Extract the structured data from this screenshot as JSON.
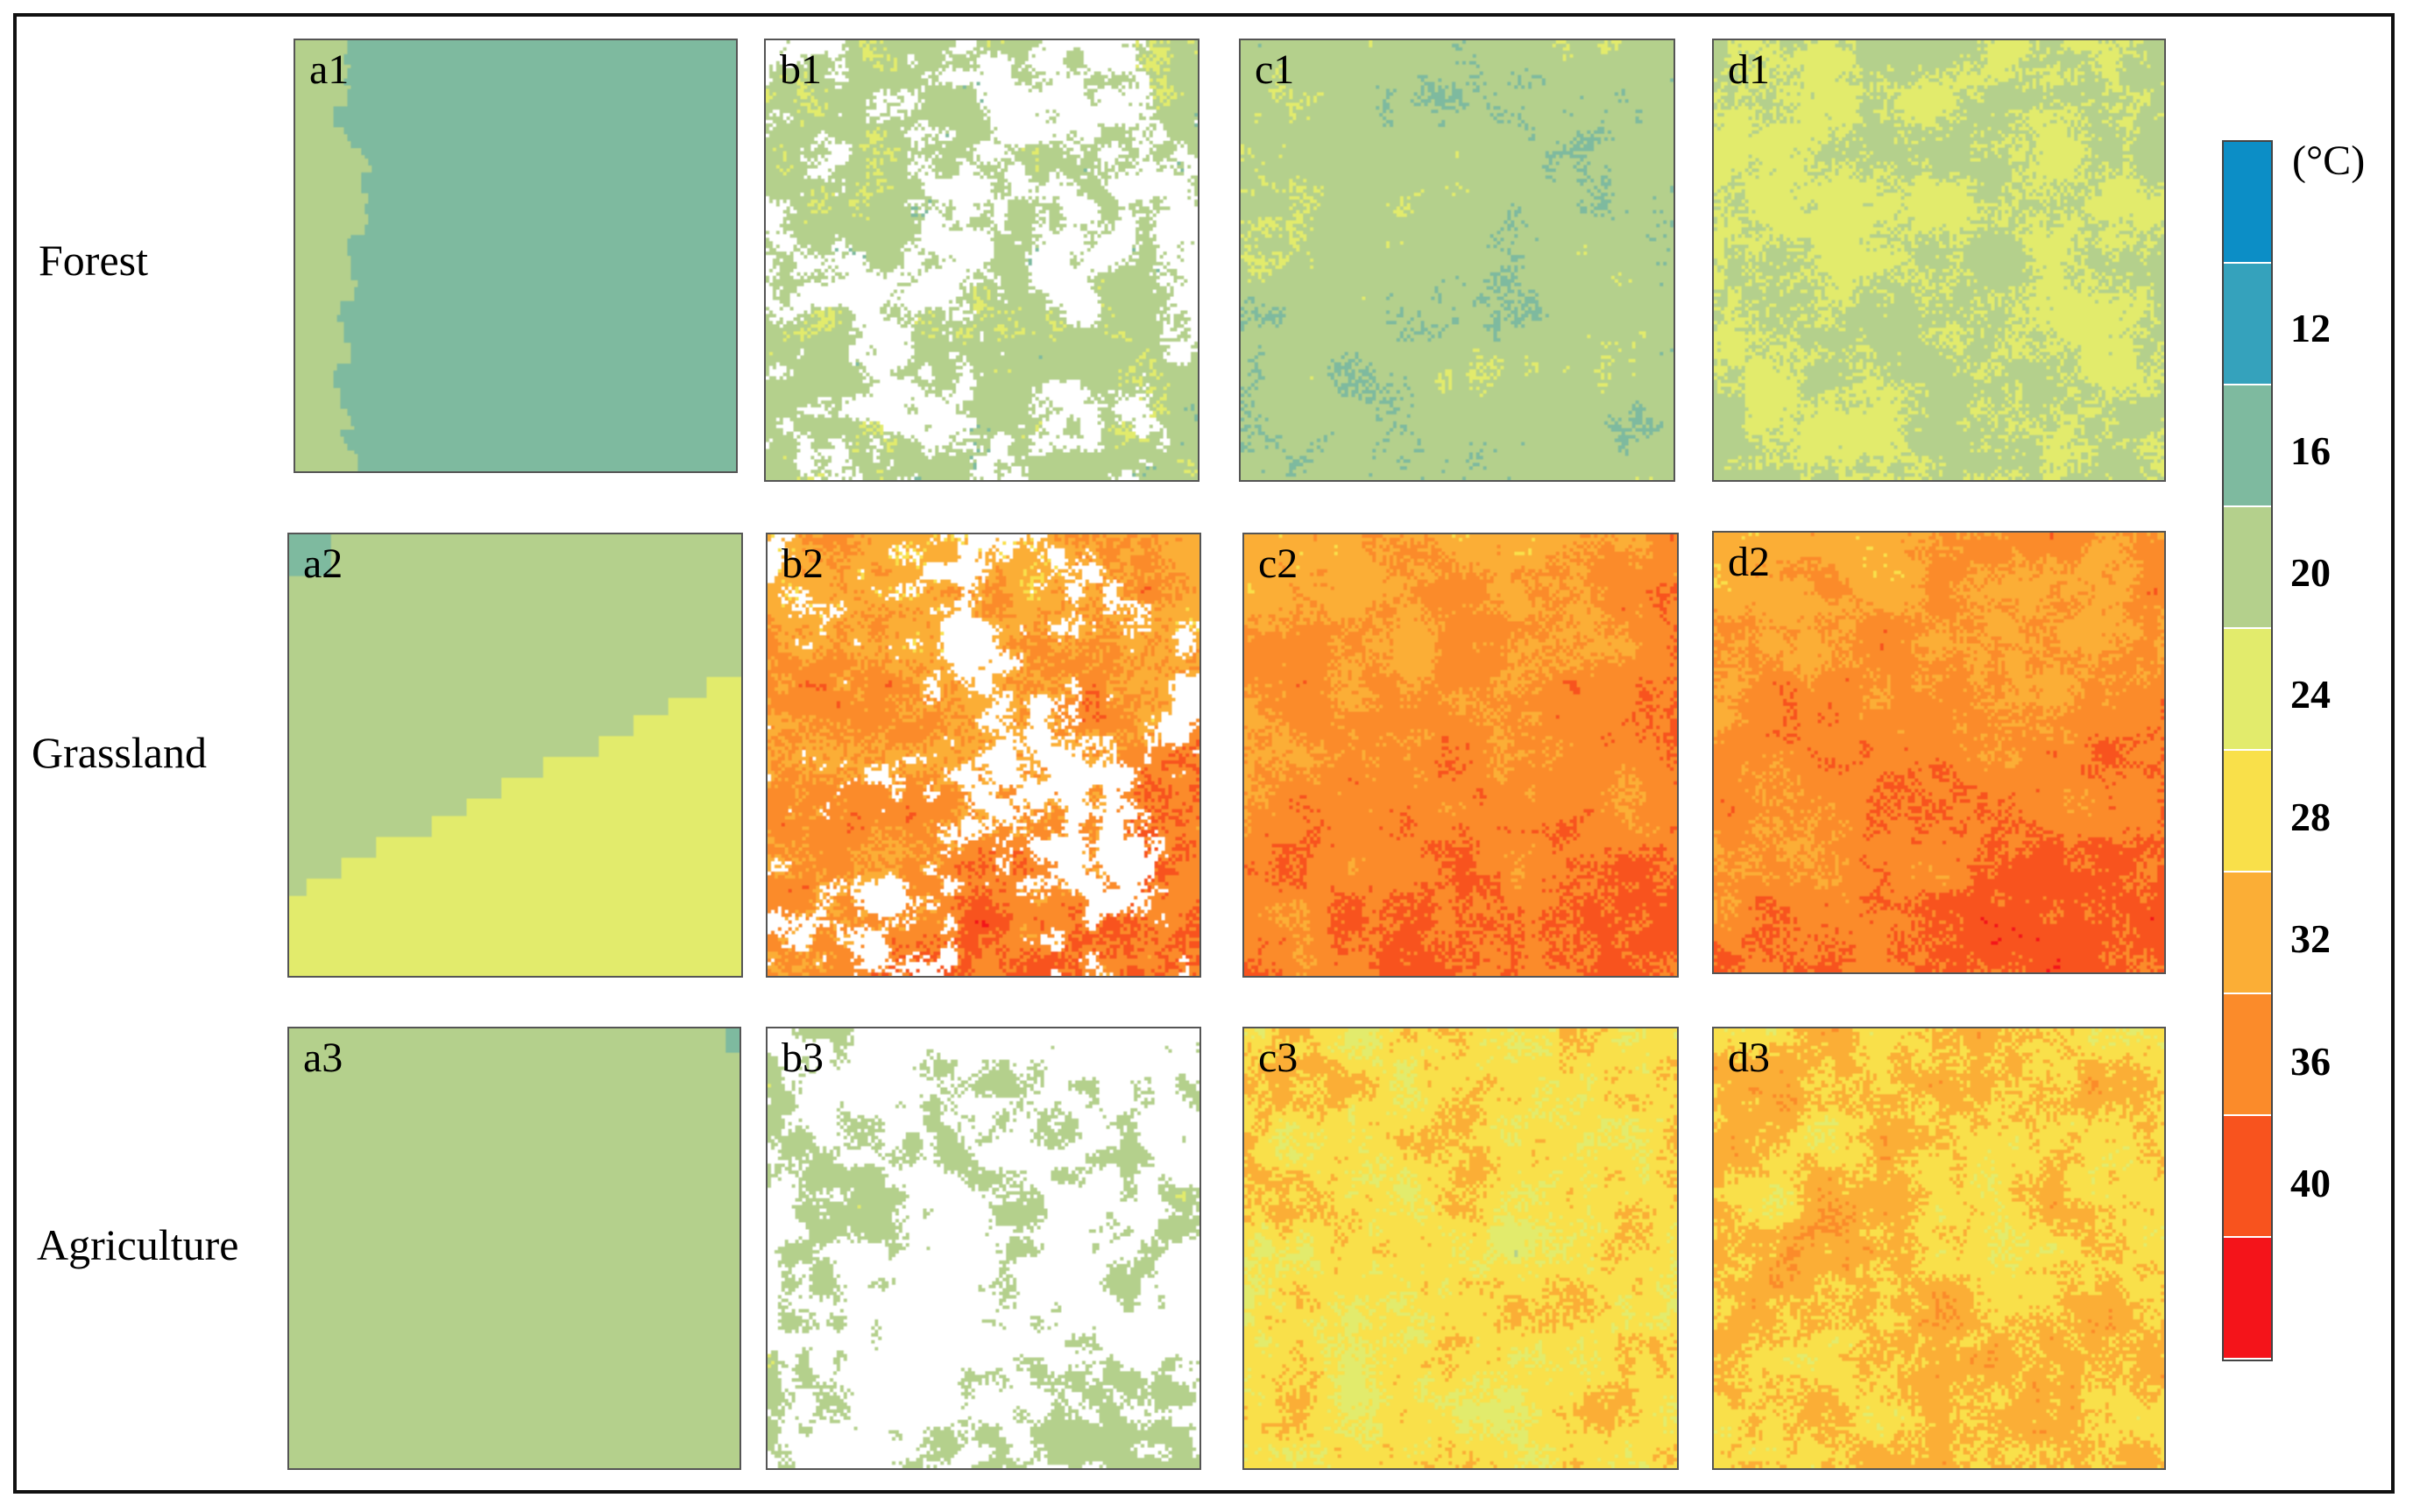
{
  "row_labels": [
    "Forest",
    "Grassland",
    "Agriculture"
  ],
  "panels": [
    {
      "label": "a1",
      "kind": "coarse-edge",
      "base": 16,
      "alt": 20
    },
    {
      "label": "b1",
      "kind": "gappy",
      "base": 22,
      "spread": 3,
      "gap": 0.45
    },
    {
      "label": "c1",
      "kind": "noise",
      "base": 22,
      "spread": 3
    },
    {
      "label": "d1",
      "kind": "noise",
      "base": 24,
      "spread": 3
    },
    {
      "label": "a2",
      "kind": "coarse-diagonal",
      "base": 24,
      "alt": 20,
      "corner": 16
    },
    {
      "label": "b2",
      "kind": "gappy",
      "base": 36,
      "spread": 5,
      "gap": 0.35,
      "trend": 5
    },
    {
      "label": "c2",
      "kind": "noise",
      "base": 37,
      "spread": 4,
      "trend": 5
    },
    {
      "label": "d2",
      "kind": "noise",
      "base": 37,
      "spread": 4,
      "trend": 5
    },
    {
      "label": "a3",
      "kind": "flat",
      "base": 20,
      "corner": 16
    },
    {
      "label": "b3",
      "kind": "gappy",
      "base": 22,
      "spread": 2,
      "gap": 0.6
    },
    {
      "label": "c3",
      "kind": "noise",
      "base": 30,
      "spread": 5
    },
    {
      "label": "d3",
      "kind": "noise",
      "base": 32,
      "spread": 5
    }
  ],
  "colorbar": {
    "unit": "(°C)",
    "ticks": [
      "12",
      "16",
      "20",
      "24",
      "28",
      "32",
      "36",
      "40"
    ],
    "bin_edges": [
      8,
      12,
      16,
      20,
      24,
      28,
      32,
      36,
      40,
      44
    ],
    "colors": [
      "#0C8EC6",
      "#35A2BC",
      "#7EBA9F",
      "#B4D08C",
      "#E2EB6C",
      "#F9E04A",
      "#FBAE36",
      "#FB8B2A",
      "#F8531E",
      "#F4141A"
    ]
  }
}
